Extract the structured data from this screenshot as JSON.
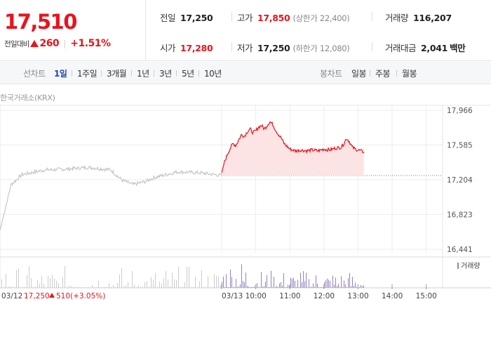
{
  "quote": {
    "price": "17,510",
    "change_label": "전일대비",
    "change_amount": "260",
    "change_pct": "+1.51%",
    "stats": [
      {
        "key": "전일",
        "value": "17,250",
        "red": false,
        "aux": ""
      },
      {
        "key": "고가",
        "value": "17,850",
        "red": true,
        "aux": "(상한가 22,400)"
      },
      {
        "key": "거래량",
        "value": "116,207",
        "red": false,
        "aux": ""
      },
      {
        "key": "시가",
        "value": "17,280",
        "red": true,
        "aux": ""
      },
      {
        "key": "저가",
        "value": "17,250",
        "red": false,
        "aux": "(하한가 12,080)"
      },
      {
        "key": "거래대금",
        "value": "2,041",
        "red": false,
        "aux": "백만"
      }
    ]
  },
  "periods": {
    "label": "선차트",
    "items": [
      "1일",
      "1주일",
      "3개월",
      "1년",
      "3년",
      "5년",
      "10년"
    ],
    "active": 0
  },
  "candles": {
    "label": "봉차트",
    "items": [
      "일봉",
      "주봉",
      "월봉"
    ]
  },
  "source_label": "한국거래소(KRX)",
  "chart_data": {
    "type": "line",
    "previous_close": 17250,
    "y_ticks": [
      17966,
      17585,
      17204,
      16823,
      16441
    ],
    "ylim": [
      16441,
      17966
    ],
    "x_tick_labels": [
      "03/13",
      "10:00",
      "11:00",
      "12:00",
      "13:00",
      "14:00",
      "15:00"
    ],
    "session_start": "09:00",
    "session_end": "15:30",
    "prev_day": {
      "date": "03/12",
      "x": [
        0,
        0.05,
        0.1,
        0.2,
        0.3,
        0.4,
        0.5,
        0.55,
        0.6,
        0.65,
        0.7,
        0.8,
        0.9,
        1.0
      ],
      "prices": [
        16650,
        17150,
        17260,
        17310,
        17320,
        17340,
        17310,
        17200,
        17150,
        17180,
        17230,
        17290,
        17280,
        17250
      ]
    },
    "today": {
      "time": [
        "09:00",
        "09:05",
        "09:10",
        "09:15",
        "09:20",
        "09:25",
        "09:30",
        "09:35",
        "09:40",
        "09:45",
        "09:50",
        "09:55",
        "10:00",
        "10:05",
        "10:10",
        "10:15",
        "10:20",
        "10:25",
        "10:30",
        "10:35",
        "10:40",
        "10:45",
        "10:50",
        "11:00",
        "11:10",
        "11:20",
        "11:30",
        "11:40",
        "11:50",
        "12:00",
        "12:10",
        "12:20",
        "12:30",
        "12:35",
        "12:40",
        "12:45",
        "12:50",
        "12:55",
        "13:00",
        "13:05",
        "13:10"
      ],
      "prices": [
        17280,
        17400,
        17480,
        17550,
        17600,
        17580,
        17640,
        17700,
        17680,
        17730,
        17760,
        17720,
        17740,
        17780,
        17800,
        17760,
        17800,
        17840,
        17810,
        17750,
        17700,
        17660,
        17600,
        17540,
        17520,
        17530,
        17520,
        17530,
        17520,
        17540,
        17530,
        17550,
        17560,
        17600,
        17660,
        17620,
        17560,
        17540,
        17530,
        17520,
        17510
      ]
    },
    "volume_label": "거래량",
    "footer": {
      "date": "03/12",
      "price": "17,250",
      "change": "510",
      "pct": "(+3.05%)"
    },
    "colors": {
      "up": "#e8141d",
      "prev_line": "#c6c6c6",
      "fill": "#fde4e4",
      "volume_prev": "#cccccc",
      "volume_today": "#9482c4",
      "grid": "#ededed"
    }
  }
}
